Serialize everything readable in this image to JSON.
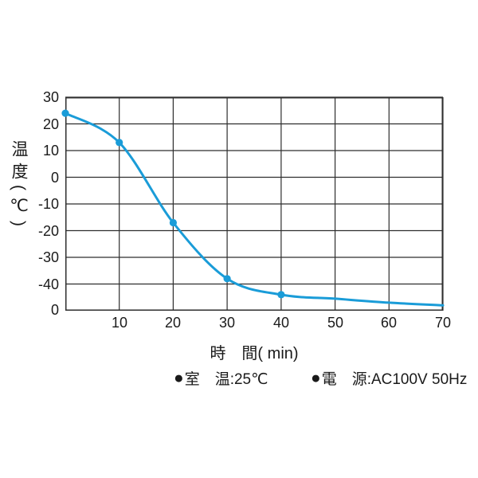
{
  "chart": {
    "y_axis_title": "温度(℃)",
    "x_axis_title": "時　間( min)",
    "origin_label": "0",
    "colors": {
      "line": "#1a9cd8",
      "marker": "#1a9cd8",
      "grid": "#2e2e2e",
      "text": "#1a1a1a",
      "background": "#ffffff"
    }
  },
  "chart_data": {
    "type": "line",
    "title": "",
    "xlabel": "時　間( min)",
    "ylabel": "温度(℃)",
    "x": [
      0,
      10,
      20,
      30,
      40,
      50,
      60,
      70
    ],
    "y": [
      24,
      13,
      -17,
      -38,
      -44,
      -45.5,
      -47,
      -48
    ],
    "marker_x": [
      0,
      10,
      20,
      30,
      40
    ],
    "xlim": [
      0,
      70
    ],
    "ylim": [
      -50,
      30
    ],
    "x_tick_values": [
      10,
      20,
      30,
      40,
      50,
      60,
      70
    ],
    "x_tick_labels": [
      "10",
      "20",
      "30",
      "40",
      "50",
      "60",
      "70"
    ],
    "y_tick_values": [
      30,
      20,
      10,
      0,
      -10,
      -20,
      -30,
      -40
    ],
    "y_tick_labels": [
      "30",
      "20",
      "10",
      "0",
      "-10",
      "-20",
      "-30",
      "-40"
    ],
    "grid": true,
    "legend_position": "none"
  },
  "notes": [
    {
      "bullet": "●",
      "label": "室　温:25℃"
    },
    {
      "bullet": "●",
      "label": "電　源:AC100V 50Hz"
    }
  ]
}
